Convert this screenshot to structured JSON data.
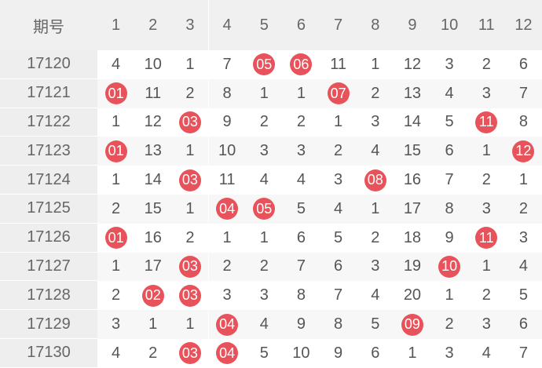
{
  "table": {
    "period_header": "期号",
    "columns": [
      "1",
      "2",
      "3",
      "4",
      "5",
      "6",
      "7",
      "8",
      "9",
      "10",
      "11",
      "12"
    ],
    "colors": {
      "ball": "#e8525a",
      "header_bg": "#f0f0f0",
      "period_bg": "#eeeeee",
      "alt_row_bg": "#f7f7f7"
    },
    "rows": [
      {
        "period": "17120",
        "cells": [
          {
            "v": "4",
            "hit": false
          },
          {
            "v": "10",
            "hit": false
          },
          {
            "v": "1",
            "hit": false
          },
          {
            "v": "7",
            "hit": false
          },
          {
            "v": "05",
            "hit": true
          },
          {
            "v": "06",
            "hit": true
          },
          {
            "v": "11",
            "hit": false
          },
          {
            "v": "1",
            "hit": false
          },
          {
            "v": "12",
            "hit": false
          },
          {
            "v": "3",
            "hit": false
          },
          {
            "v": "2",
            "hit": false
          },
          {
            "v": "6",
            "hit": false
          }
        ]
      },
      {
        "period": "17121",
        "cells": [
          {
            "v": "01",
            "hit": true
          },
          {
            "v": "11",
            "hit": false
          },
          {
            "v": "2",
            "hit": false
          },
          {
            "v": "8",
            "hit": false
          },
          {
            "v": "1",
            "hit": false
          },
          {
            "v": "1",
            "hit": false
          },
          {
            "v": "07",
            "hit": true
          },
          {
            "v": "2",
            "hit": false
          },
          {
            "v": "13",
            "hit": false
          },
          {
            "v": "4",
            "hit": false
          },
          {
            "v": "3",
            "hit": false
          },
          {
            "v": "7",
            "hit": false
          }
        ]
      },
      {
        "period": "17122",
        "cells": [
          {
            "v": "1",
            "hit": false
          },
          {
            "v": "12",
            "hit": false
          },
          {
            "v": "03",
            "hit": true
          },
          {
            "v": "9",
            "hit": false
          },
          {
            "v": "2",
            "hit": false
          },
          {
            "v": "2",
            "hit": false
          },
          {
            "v": "1",
            "hit": false
          },
          {
            "v": "3",
            "hit": false
          },
          {
            "v": "14",
            "hit": false
          },
          {
            "v": "5",
            "hit": false
          },
          {
            "v": "11",
            "hit": true
          },
          {
            "v": "8",
            "hit": false
          }
        ]
      },
      {
        "period": "17123",
        "cells": [
          {
            "v": "01",
            "hit": true
          },
          {
            "v": "13",
            "hit": false
          },
          {
            "v": "1",
            "hit": false
          },
          {
            "v": "10",
            "hit": false
          },
          {
            "v": "3",
            "hit": false
          },
          {
            "v": "3",
            "hit": false
          },
          {
            "v": "2",
            "hit": false
          },
          {
            "v": "4",
            "hit": false
          },
          {
            "v": "15",
            "hit": false
          },
          {
            "v": "6",
            "hit": false
          },
          {
            "v": "1",
            "hit": false
          },
          {
            "v": "12",
            "hit": true
          }
        ]
      },
      {
        "period": "17124",
        "cells": [
          {
            "v": "1",
            "hit": false
          },
          {
            "v": "14",
            "hit": false
          },
          {
            "v": "03",
            "hit": true
          },
          {
            "v": "11",
            "hit": false
          },
          {
            "v": "4",
            "hit": false
          },
          {
            "v": "4",
            "hit": false
          },
          {
            "v": "3",
            "hit": false
          },
          {
            "v": "08",
            "hit": true
          },
          {
            "v": "16",
            "hit": false
          },
          {
            "v": "7",
            "hit": false
          },
          {
            "v": "2",
            "hit": false
          },
          {
            "v": "1",
            "hit": false
          }
        ]
      },
      {
        "period": "17125",
        "cells": [
          {
            "v": "2",
            "hit": false
          },
          {
            "v": "15",
            "hit": false
          },
          {
            "v": "1",
            "hit": false
          },
          {
            "v": "04",
            "hit": true
          },
          {
            "v": "05",
            "hit": true
          },
          {
            "v": "5",
            "hit": false
          },
          {
            "v": "4",
            "hit": false
          },
          {
            "v": "1",
            "hit": false
          },
          {
            "v": "17",
            "hit": false
          },
          {
            "v": "8",
            "hit": false
          },
          {
            "v": "3",
            "hit": false
          },
          {
            "v": "2",
            "hit": false
          }
        ]
      },
      {
        "period": "17126",
        "cells": [
          {
            "v": "01",
            "hit": true
          },
          {
            "v": "16",
            "hit": false
          },
          {
            "v": "2",
            "hit": false
          },
          {
            "v": "1",
            "hit": false
          },
          {
            "v": "1",
            "hit": false
          },
          {
            "v": "6",
            "hit": false
          },
          {
            "v": "5",
            "hit": false
          },
          {
            "v": "2",
            "hit": false
          },
          {
            "v": "18",
            "hit": false
          },
          {
            "v": "9",
            "hit": false
          },
          {
            "v": "11",
            "hit": true
          },
          {
            "v": "3",
            "hit": false
          }
        ]
      },
      {
        "period": "17127",
        "cells": [
          {
            "v": "1",
            "hit": false
          },
          {
            "v": "17",
            "hit": false
          },
          {
            "v": "03",
            "hit": true
          },
          {
            "v": "2",
            "hit": false
          },
          {
            "v": "2",
            "hit": false
          },
          {
            "v": "7",
            "hit": false
          },
          {
            "v": "6",
            "hit": false
          },
          {
            "v": "3",
            "hit": false
          },
          {
            "v": "19",
            "hit": false
          },
          {
            "v": "10",
            "hit": true
          },
          {
            "v": "1",
            "hit": false
          },
          {
            "v": "4",
            "hit": false
          }
        ]
      },
      {
        "period": "17128",
        "cells": [
          {
            "v": "2",
            "hit": false
          },
          {
            "v": "02",
            "hit": true
          },
          {
            "v": "03",
            "hit": true
          },
          {
            "v": "3",
            "hit": false
          },
          {
            "v": "3",
            "hit": false
          },
          {
            "v": "8",
            "hit": false
          },
          {
            "v": "7",
            "hit": false
          },
          {
            "v": "4",
            "hit": false
          },
          {
            "v": "20",
            "hit": false
          },
          {
            "v": "1",
            "hit": false
          },
          {
            "v": "2",
            "hit": false
          },
          {
            "v": "5",
            "hit": false
          }
        ]
      },
      {
        "period": "17129",
        "cells": [
          {
            "v": "3",
            "hit": false
          },
          {
            "v": "1",
            "hit": false
          },
          {
            "v": "1",
            "hit": false
          },
          {
            "v": "04",
            "hit": true
          },
          {
            "v": "4",
            "hit": false
          },
          {
            "v": "9",
            "hit": false
          },
          {
            "v": "8",
            "hit": false
          },
          {
            "v": "5",
            "hit": false
          },
          {
            "v": "09",
            "hit": true
          },
          {
            "v": "2",
            "hit": false
          },
          {
            "v": "3",
            "hit": false
          },
          {
            "v": "6",
            "hit": false
          }
        ]
      },
      {
        "period": "17130",
        "cells": [
          {
            "v": "4",
            "hit": false
          },
          {
            "v": "2",
            "hit": false
          },
          {
            "v": "03",
            "hit": true
          },
          {
            "v": "04",
            "hit": true
          },
          {
            "v": "5",
            "hit": false
          },
          {
            "v": "10",
            "hit": false
          },
          {
            "v": "9",
            "hit": false
          },
          {
            "v": "6",
            "hit": false
          },
          {
            "v": "1",
            "hit": false
          },
          {
            "v": "3",
            "hit": false
          },
          {
            "v": "4",
            "hit": false
          },
          {
            "v": "7",
            "hit": false
          }
        ]
      }
    ]
  }
}
